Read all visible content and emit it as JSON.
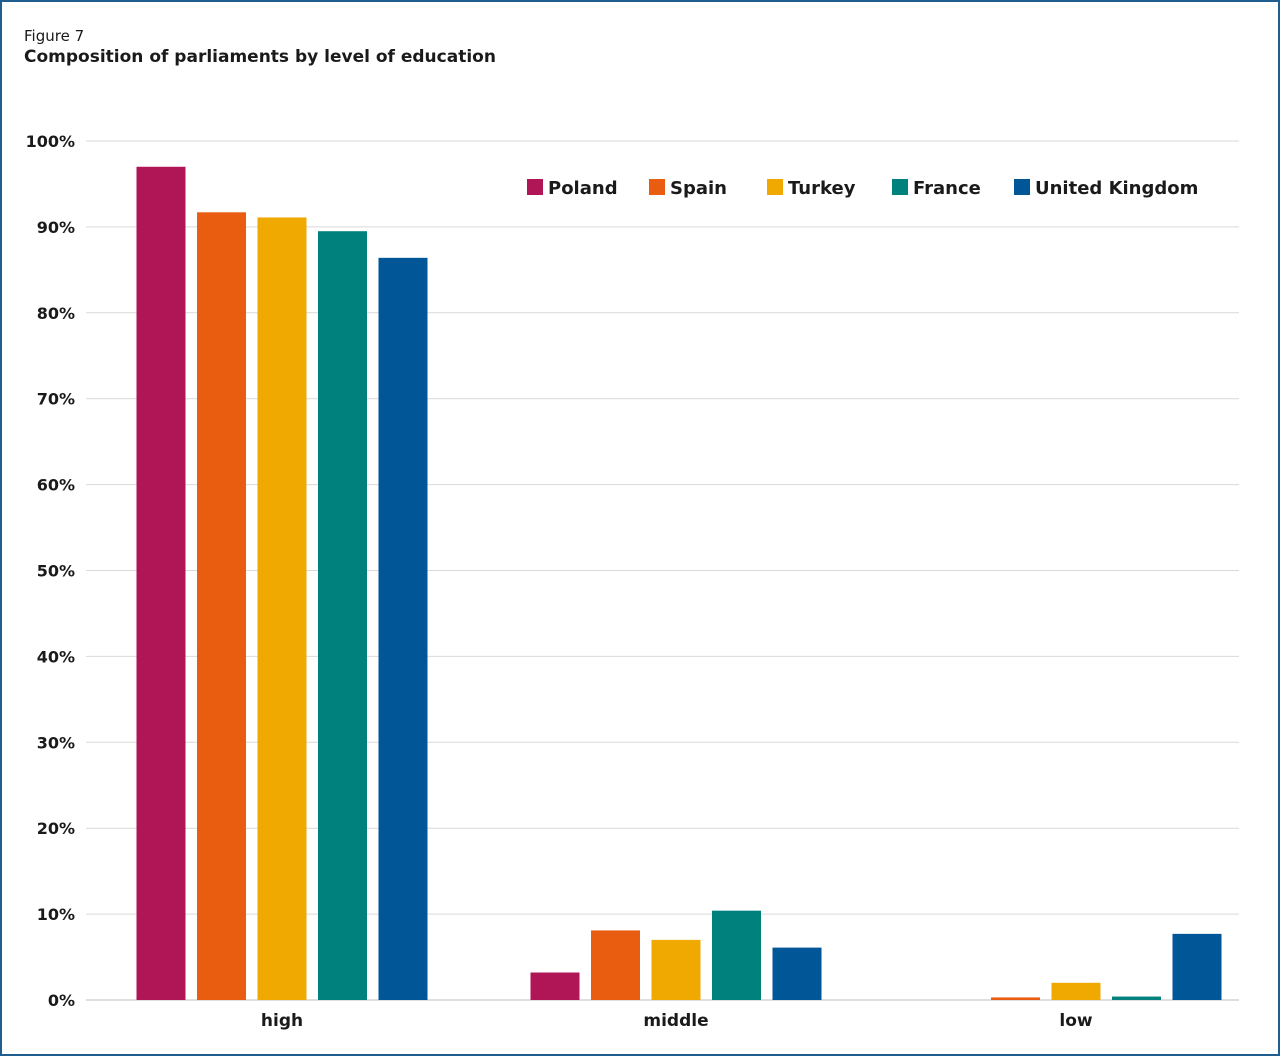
{
  "figure": {
    "label": "Figure 7",
    "title": "Composition of parliaments by level of education"
  },
  "chart_data": {
    "type": "bar",
    "title": "Composition of parliaments by level of education",
    "xlabel": "",
    "ylabel": "",
    "categories": [
      "high",
      "middle",
      "low"
    ],
    "ylim": [
      0,
      100
    ],
    "yticks": [
      0,
      10,
      20,
      30,
      40,
      50,
      60,
      70,
      80,
      90,
      100
    ],
    "ytick_labels": [
      "0%",
      "10%",
      "20%",
      "30%",
      "40%",
      "50%",
      "60%",
      "70%",
      "80%",
      "90%",
      "100%"
    ],
    "grid": true,
    "legend_position": "top-right",
    "series": [
      {
        "name": "Poland",
        "color": "#b01556",
        "values": [
          97.0,
          3.2,
          0.0
        ]
      },
      {
        "name": "Spain",
        "color": "#e95d10",
        "values": [
          91.7,
          8.1,
          0.3
        ]
      },
      {
        "name": "Turkey",
        "color": "#f0a900",
        "values": [
          91.1,
          7.0,
          2.0
        ]
      },
      {
        "name": "France",
        "color": "#00817e",
        "values": [
          89.5,
          10.4,
          0.4
        ]
      },
      {
        "name": "United Kingdom",
        "color": "#005697",
        "values": [
          86.4,
          6.1,
          7.7
        ]
      }
    ]
  }
}
